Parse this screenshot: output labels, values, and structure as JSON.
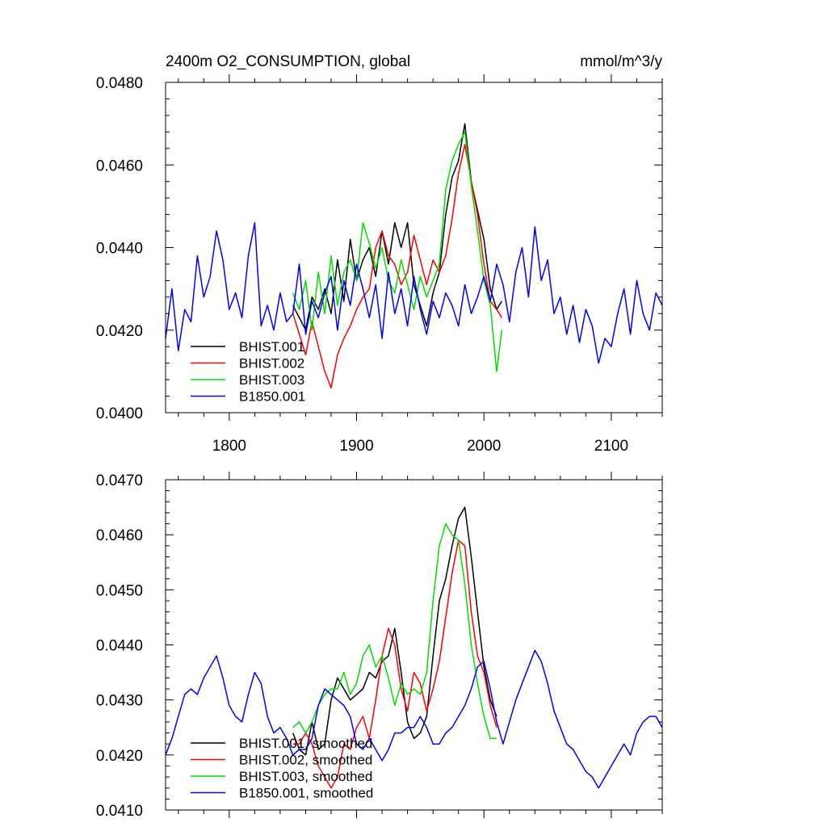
{
  "chart_data": [
    {
      "type": "line",
      "title": "2400m O2_CONSUMPTION, global",
      "units": "mmol/m^3/y",
      "xlim": [
        1750,
        2140
      ],
      "ylim": [
        0.04,
        0.048
      ],
      "x_ticks": [
        1800,
        1900,
        2000,
        2100
      ],
      "x_tick_labels": [
        "1800",
        "1900",
        "2000",
        "2100"
      ],
      "y_ticks": [
        0.04,
        0.042,
        0.044,
        0.046,
        0.048
      ],
      "y_tick_labels": [
        "0.0400",
        "0.0420",
        "0.0440",
        "0.0460",
        "0.0480"
      ],
      "grid": false,
      "legend_position": "bottom-left",
      "series": [
        {
          "name": "BHIST.001",
          "color": "#000000",
          "x": [
            1850,
            1855,
            1860,
            1865,
            1870,
            1875,
            1880,
            1885,
            1890,
            1895,
            1900,
            1905,
            1910,
            1915,
            1920,
            1925,
            1930,
            1935,
            1940,
            1945,
            1950,
            1955,
            1960,
            1965,
            1970,
            1975,
            1980,
            1985,
            1990,
            1995,
            2000,
            2005,
            2010,
            2014
          ],
          "values": [
            0.0426,
            0.0423,
            0.042,
            0.0428,
            0.0425,
            0.043,
            0.0424,
            0.0437,
            0.0427,
            0.0442,
            0.0432,
            0.0437,
            0.044,
            0.0433,
            0.0444,
            0.0436,
            0.0446,
            0.044,
            0.0446,
            0.0431,
            0.0426,
            0.0421,
            0.0429,
            0.0434,
            0.0448,
            0.0457,
            0.0461,
            0.047,
            0.0456,
            0.0449,
            0.0442,
            0.043,
            0.0425,
            0.0427
          ]
        },
        {
          "name": "BHIST.002",
          "color": "#ff0000",
          "x": [
            1850,
            1855,
            1860,
            1865,
            1870,
            1875,
            1880,
            1885,
            1890,
            1895,
            1900,
            1905,
            1910,
            1915,
            1920,
            1925,
            1930,
            1935,
            1940,
            1945,
            1950,
            1955,
            1960,
            1965,
            1970,
            1975,
            1980,
            1985,
            1990,
            1995,
            2000,
            2005,
            2010,
            2014
          ],
          "values": [
            0.0424,
            0.0419,
            0.0414,
            0.0422,
            0.0416,
            0.041,
            0.0406,
            0.0414,
            0.0418,
            0.0421,
            0.0425,
            0.0428,
            0.043,
            0.044,
            0.0444,
            0.0438,
            0.0436,
            0.0431,
            0.0434,
            0.0443,
            0.0437,
            0.0431,
            0.0437,
            0.0434,
            0.0438,
            0.0447,
            0.0458,
            0.0465,
            0.0456,
            0.0448,
            0.0436,
            0.0427,
            0.0425,
            0.0423
          ]
        },
        {
          "name": "BHIST.003",
          "color": "#00dd00",
          "x": [
            1850,
            1855,
            1860,
            1865,
            1870,
            1875,
            1880,
            1885,
            1890,
            1895,
            1900,
            1905,
            1910,
            1915,
            1920,
            1925,
            1930,
            1935,
            1940,
            1945,
            1950,
            1955,
            1960,
            1965,
            1970,
            1975,
            1980,
            1985,
            1990,
            1995,
            2000,
            2005,
            2010,
            2014
          ],
          "values": [
            0.0429,
            0.0425,
            0.0432,
            0.042,
            0.0434,
            0.0424,
            0.0438,
            0.0426,
            0.0434,
            0.0437,
            0.0432,
            0.0446,
            0.0441,
            0.0435,
            0.044,
            0.0432,
            0.0429,
            0.0437,
            0.0431,
            0.0425,
            0.0433,
            0.0428,
            0.0432,
            0.0436,
            0.0454,
            0.0461,
            0.0465,
            0.0468,
            0.0455,
            0.0444,
            0.0432,
            0.0426,
            0.041,
            0.042
          ]
        },
        {
          "name": "B1850.001",
          "color": "#0000ff",
          "x": [
            1750,
            1755,
            1760,
            1765,
            1770,
            1775,
            1780,
            1785,
            1790,
            1795,
            1800,
            1805,
            1810,
            1815,
            1820,
            1825,
            1830,
            1835,
            1840,
            1845,
            1850,
            1855,
            1860,
            1865,
            1870,
            1875,
            1880,
            1885,
            1890,
            1895,
            1900,
            1905,
            1910,
            1915,
            1920,
            1925,
            1930,
            1935,
            1940,
            1945,
            1950,
            1955,
            1960,
            1965,
            1970,
            1975,
            1980,
            1985,
            1990,
            1995,
            2000,
            2005,
            2010,
            2015,
            2020,
            2025,
            2030,
            2035,
            2040,
            2045,
            2050,
            2055,
            2060,
            2065,
            2070,
            2075,
            2080,
            2085,
            2090,
            2095,
            2100,
            2105,
            2110,
            2115,
            2120,
            2125,
            2130,
            2135,
            2140
          ],
          "values": [
            0.0418,
            0.043,
            0.0415,
            0.0425,
            0.0422,
            0.0438,
            0.0428,
            0.0433,
            0.0444,
            0.0437,
            0.0425,
            0.0429,
            0.0423,
            0.0438,
            0.0446,
            0.0421,
            0.0426,
            0.042,
            0.0429,
            0.0422,
            0.0424,
            0.0436,
            0.0419,
            0.0427,
            0.0423,
            0.0429,
            0.0433,
            0.042,
            0.0432,
            0.0426,
            0.0436,
            0.043,
            0.0423,
            0.0431,
            0.0418,
            0.0434,
            0.0424,
            0.043,
            0.0421,
            0.0433,
            0.0425,
            0.0419,
            0.0427,
            0.0423,
            0.0429,
            0.0426,
            0.0421,
            0.0431,
            0.0424,
            0.0428,
            0.0433,
            0.0427,
            0.0436,
            0.0431,
            0.0422,
            0.0434,
            0.044,
            0.0428,
            0.0445,
            0.0432,
            0.0437,
            0.0424,
            0.0428,
            0.0419,
            0.0426,
            0.0417,
            0.0425,
            0.0421,
            0.0412,
            0.0418,
            0.0416,
            0.0424,
            0.043,
            0.0419,
            0.0432,
            0.0424,
            0.042,
            0.0429,
            0.0426
          ]
        }
      ]
    },
    {
      "type": "line",
      "title": "",
      "xlim": [
        1750,
        2140
      ],
      "ylim": [
        0.041,
        0.047
      ],
      "x_ticks": [
        1800,
        1900,
        2000,
        2100
      ],
      "y_ticks": [
        0.041,
        0.042,
        0.043,
        0.044,
        0.045,
        0.046,
        0.047
      ],
      "y_tick_labels": [
        "0.0410",
        "0.0420",
        "0.0430",
        "0.0440",
        "0.0450",
        "0.0460",
        "0.0470"
      ],
      "grid": false,
      "legend_position": "bottom-left",
      "series": [
        {
          "name": "BHIST.001, smoothed",
          "color": "#000000",
          "x": [
            1850,
            1855,
            1860,
            1865,
            1870,
            1875,
            1880,
            1885,
            1890,
            1895,
            1900,
            1905,
            1910,
            1915,
            1920,
            1925,
            1930,
            1935,
            1940,
            1945,
            1950,
            1955,
            1960,
            1965,
            1970,
            1975,
            1980,
            1985,
            1990,
            1995,
            2000,
            2005,
            2010
          ],
          "values": [
            0.0424,
            0.0421,
            0.042,
            0.0426,
            0.0421,
            0.0422,
            0.043,
            0.0434,
            0.0432,
            0.043,
            0.0431,
            0.0432,
            0.0435,
            0.0434,
            0.0437,
            0.0438,
            0.0443,
            0.0435,
            0.0426,
            0.0423,
            0.0424,
            0.0427,
            0.0438,
            0.0448,
            0.0452,
            0.0458,
            0.0463,
            0.0465,
            0.0456,
            0.0446,
            0.0436,
            0.043,
            0.0427
          ]
        },
        {
          "name": "BHIST.002, smoothed",
          "color": "#ff0000",
          "x": [
            1850,
            1855,
            1860,
            1865,
            1870,
            1875,
            1880,
            1885,
            1890,
            1895,
            1900,
            1905,
            1910,
            1915,
            1920,
            1925,
            1930,
            1935,
            1940,
            1945,
            1950,
            1955,
            1960,
            1965,
            1970,
            1975,
            1980,
            1985,
            1990,
            1995,
            2000,
            2005,
            2010
          ],
          "values": [
            0.0422,
            0.0422,
            0.0424,
            0.0422,
            0.0418,
            0.0416,
            0.0414,
            0.0416,
            0.0422,
            0.0421,
            0.0425,
            0.0427,
            0.0423,
            0.043,
            0.0438,
            0.0443,
            0.044,
            0.0432,
            0.0428,
            0.0435,
            0.0433,
            0.0428,
            0.0432,
            0.0437,
            0.0445,
            0.0453,
            0.0459,
            0.0458,
            0.0446,
            0.0438,
            0.0435,
            0.0429,
            0.0425
          ]
        },
        {
          "name": "BHIST.003, smoothed",
          "color": "#00dd00",
          "x": [
            1850,
            1855,
            1860,
            1865,
            1870,
            1875,
            1880,
            1885,
            1890,
            1895,
            1900,
            1905,
            1910,
            1915,
            1920,
            1925,
            1930,
            1935,
            1940,
            1945,
            1950,
            1955,
            1960,
            1965,
            1970,
            1975,
            1980,
            1985,
            1990,
            1995,
            2000,
            2005,
            2010
          ],
          "values": [
            0.0425,
            0.0426,
            0.0424,
            0.0426,
            0.0429,
            0.0431,
            0.0432,
            0.0432,
            0.0435,
            0.0431,
            0.0433,
            0.0438,
            0.044,
            0.0436,
            0.0438,
            0.0434,
            0.0429,
            0.0433,
            0.0431,
            0.0432,
            0.0431,
            0.0435,
            0.0448,
            0.0458,
            0.0462,
            0.046,
            0.0459,
            0.0451,
            0.044,
            0.0433,
            0.0427,
            0.0423,
            0.0423
          ]
        },
        {
          "name": "B1850.001, smoothed",
          "color": "#0000ff",
          "x": [
            1750,
            1755,
            1760,
            1765,
            1770,
            1775,
            1780,
            1785,
            1790,
            1795,
            1800,
            1805,
            1810,
            1815,
            1820,
            1825,
            1830,
            1835,
            1840,
            1845,
            1850,
            1855,
            1860,
            1865,
            1870,
            1875,
            1880,
            1885,
            1890,
            1895,
            1900,
            1905,
            1910,
            1915,
            1920,
            1925,
            1930,
            1935,
            1940,
            1945,
            1950,
            1955,
            1960,
            1965,
            1970,
            1975,
            1980,
            1985,
            1990,
            1995,
            2000,
            2005,
            2010,
            2015,
            2020,
            2025,
            2030,
            2035,
            2040,
            2045,
            2050,
            2055,
            2060,
            2065,
            2070,
            2075,
            2080,
            2085,
            2090,
            2095,
            2100,
            2105,
            2110,
            2115,
            2120,
            2125,
            2130,
            2135,
            2140
          ],
          "values": [
            0.042,
            0.0423,
            0.0427,
            0.0431,
            0.0432,
            0.0431,
            0.0434,
            0.0436,
            0.0438,
            0.0434,
            0.0429,
            0.0427,
            0.0426,
            0.0431,
            0.0435,
            0.0433,
            0.0427,
            0.0424,
            0.0425,
            0.0423,
            0.042,
            0.0421,
            0.0421,
            0.0423,
            0.0429,
            0.0432,
            0.0431,
            0.043,
            0.0429,
            0.0427,
            0.0422,
            0.0421,
            0.0423,
            0.0421,
            0.0419,
            0.0421,
            0.0424,
            0.0424,
            0.0425,
            0.0425,
            0.0427,
            0.0425,
            0.0422,
            0.0422,
            0.0424,
            0.0425,
            0.0427,
            0.0429,
            0.0432,
            0.0436,
            0.0437,
            0.0432,
            0.0426,
            0.0422,
            0.0426,
            0.043,
            0.0433,
            0.0436,
            0.0439,
            0.0437,
            0.0433,
            0.0428,
            0.0425,
            0.0422,
            0.0421,
            0.0419,
            0.0417,
            0.0416,
            0.0414,
            0.0416,
            0.0418,
            0.042,
            0.0422,
            0.042,
            0.0424,
            0.0426,
            0.0427,
            0.0427,
            0.0425
          ]
        }
      ]
    }
  ]
}
